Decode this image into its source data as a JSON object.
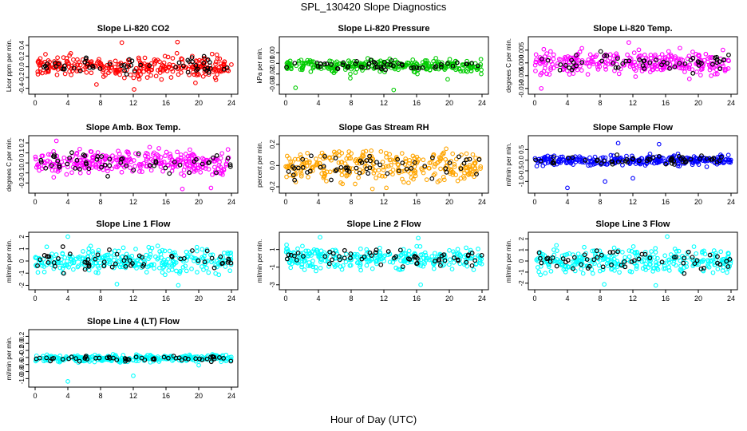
{
  "title": "SPL_130420  Slope Diagnostics",
  "xlabel": "Hour of Day (UTC)",
  "colors": {
    "trend": "#000000",
    "axis": "#000000"
  },
  "chart_data": [
    {
      "type": "scatter",
      "title": "Slope Li-820 CO2",
      "ylabel": "Licor ppm per min.",
      "color": "#ff0000",
      "xlim": [
        0,
        24
      ],
      "ylim": [
        -0.45,
        0.5
      ],
      "xticks": [
        "0",
        "4",
        "8",
        "12",
        "16",
        "20",
        "24"
      ],
      "yticks": [
        {
          "v": -0.4,
          "label": "-0.4"
        },
        {
          "v": -0.2,
          "label": "-0.2"
        },
        {
          "v": 0,
          "label": "0.0"
        },
        {
          "v": 0.2,
          "label": "0.2"
        },
        {
          "v": 0.4,
          "label": "0.4"
        }
      ],
      "spread": 0.14,
      "outliers": [
        [
          7.5,
          -0.33
        ],
        [
          10.6,
          0.45
        ],
        [
          12.1,
          -0.42
        ],
        [
          17.4,
          0.46
        ],
        [
          19.6,
          -0.3
        ]
      ]
    },
    {
      "type": "scatter",
      "title": "Slope Li-820 Pressure",
      "ylabel": "kPa per min.",
      "color": "#00cc00",
      "xlim": [
        0,
        24
      ],
      "ylim": [
        -0.036,
        0.012
      ],
      "xticks": [
        "0",
        "4",
        "8",
        "12",
        "16",
        "20",
        "24"
      ],
      "yticks": [
        {
          "v": -0.03,
          "label": "-0.03"
        },
        {
          "v": -0.02,
          "label": "-0.02"
        },
        {
          "v": -0.01,
          "label": "-0.01"
        },
        {
          "v": 0,
          "label": "0.00"
        }
      ],
      "spread": 0.004,
      "outliers": [
        [
          1.2,
          -0.033
        ],
        [
          7.9,
          -0.02
        ],
        [
          7.9,
          -0.024
        ],
        [
          13.2,
          -0.035
        ],
        [
          16.1,
          -0.02
        ],
        [
          19.8,
          -0.025
        ],
        [
          23.9,
          -0.02
        ]
      ]
    },
    {
      "type": "scatter",
      "title": "Slope Li-820 Temp.",
      "ylabel": "degrees C per min.",
      "color": "#ff00ff",
      "xlim": [
        0,
        24
      ],
      "ylim": [
        -0.011,
        0.009
      ],
      "xticks": [
        "0",
        "4",
        "8",
        "12",
        "16",
        "20",
        "24"
      ],
      "yticks": [
        {
          "v": -0.01,
          "label": "-0.010"
        },
        {
          "v": -0.005,
          "label": "-0.005"
        },
        {
          "v": 0,
          "label": "0.000"
        },
        {
          "v": 0.005,
          "label": "0.005"
        }
      ],
      "spread": 0.0035,
      "outliers": [
        [
          0.8,
          -0.01
        ],
        [
          11.5,
          0.008
        ]
      ]
    },
    {
      "type": "scatter",
      "title": "Slope Amb. Box Temp.",
      "ylabel": "degrees C per min.",
      "color": "#ff00ff",
      "xlim": [
        0,
        24
      ],
      "ylim": [
        -0.27,
        0.24
      ],
      "xticks": [
        "0",
        "4",
        "8",
        "12",
        "16",
        "20",
        "24"
      ],
      "yticks": [
        {
          "v": -0.2,
          "label": "-0.2"
        },
        {
          "v": -0.1,
          "label": "-0.1"
        },
        {
          "v": 0,
          "label": "0.0"
        },
        {
          "v": 0.1,
          "label": "0.1"
        },
        {
          "v": 0.2,
          "label": "0.2"
        }
      ],
      "spread": 0.09,
      "outliers": [
        [
          2.6,
          0.22
        ],
        [
          18.0,
          -0.26
        ],
        [
          21.5,
          -0.25
        ]
      ]
    },
    {
      "type": "scatter",
      "title": "Slope Gas Stream RH",
      "ylabel": "percent per min.",
      "color": "#ffa500",
      "xlim": [
        0,
        24
      ],
      "ylim": [
        -0.23,
        0.25
      ],
      "xticks": [
        "0",
        "4",
        "8",
        "12",
        "16",
        "20",
        "24"
      ],
      "yticks": [
        {
          "v": -0.2,
          "label": "-0.2"
        },
        {
          "v": 0,
          "label": "0.0"
        },
        {
          "v": 0.2,
          "label": "0.2"
        }
      ],
      "spread": 0.11,
      "outliers": [
        [
          10.6,
          -0.22
        ],
        [
          12.3,
          -0.21
        ]
      ]
    },
    {
      "type": "scatter",
      "title": "Slope Sample Flow",
      "ylabel": "ml/min per min.",
      "color": "#0000ff",
      "xlim": [
        0,
        24
      ],
      "ylim": [
        -1.4,
        1.0
      ],
      "xticks": [
        "0",
        "4",
        "8",
        "12",
        "16",
        "20",
        "24"
      ],
      "yticks": [
        {
          "v": -1,
          "label": "-1.0"
        },
        {
          "v": -0.5,
          "label": "-0.5"
        },
        {
          "v": 0,
          "label": "0.0"
        },
        {
          "v": 0.5,
          "label": "0.5"
        }
      ],
      "spread": 0.18,
      "outliers": [
        [
          4.0,
          -1.3
        ],
        [
          8.6,
          -1.0
        ],
        [
          12.0,
          -0.85
        ],
        [
          15.2,
          0.75
        ],
        [
          10.2,
          0.8
        ]
      ]
    },
    {
      "type": "scatter",
      "title": "Slope Line 1 Flow",
      "ylabel": "ml/min per min.",
      "color": "#00ffff",
      "xlim": [
        0,
        24
      ],
      "ylim": [
        -2.1,
        2.1
      ],
      "xticks": [
        "0",
        "4",
        "8",
        "12",
        "16",
        "20",
        "24"
      ],
      "yticks": [
        {
          "v": -2,
          "label": "-2"
        },
        {
          "v": -1,
          "label": "-1"
        },
        {
          "v": 0,
          "label": "0"
        },
        {
          "v": 1,
          "label": "1"
        },
        {
          "v": 2,
          "label": "2"
        }
      ],
      "spread": 0.75,
      "outliers": [
        [
          4.0,
          2.0
        ],
        [
          10.0,
          -1.9
        ],
        [
          17.5,
          -2.0
        ]
      ]
    },
    {
      "type": "scatter",
      "title": "Slope Line 2 Flow",
      "ylabel": "ml/min per min.",
      "color": "#00ffff",
      "xlim": [
        0,
        24
      ],
      "ylim": [
        -3.2,
        2.6
      ],
      "xticks": [
        "0",
        "4",
        "8",
        "12",
        "16",
        "20",
        "24"
      ],
      "yticks": [
        {
          "v": -3,
          "label": "-3"
        },
        {
          "v": -1,
          "label": "-1"
        },
        {
          "v": 1,
          "label": "1"
        }
      ],
      "spread": 1.0,
      "outliers": [
        [
          16.5,
          -3.0
        ],
        [
          4.2,
          2.4
        ],
        [
          16.2,
          2.3
        ]
      ]
    },
    {
      "type": "scatter",
      "title": "Slope Line 3 Flow",
      "ylabel": "ml/min per min.",
      "color": "#00ffff",
      "xlim": [
        0,
        24
      ],
      "ylim": [
        -2.3,
        2.3
      ],
      "xticks": [
        "0",
        "4",
        "8",
        "12",
        "16",
        "20",
        "24"
      ],
      "yticks": [
        {
          "v": -2,
          "label": "-2"
        },
        {
          "v": -1,
          "label": "-1"
        },
        {
          "v": 0,
          "label": "0"
        },
        {
          "v": 1,
          "label": "1"
        },
        {
          "v": 2,
          "label": "2"
        }
      ],
      "spread": 0.8,
      "outliers": [
        [
          8.5,
          -2.1
        ],
        [
          16.2,
          2.2
        ],
        [
          14.8,
          -2.2
        ]
      ]
    },
    {
      "type": "scatter",
      "title": "Slope Line 4 (LT) Flow",
      "ylabel": "ml/min per min.",
      "color": "#00ffff",
      "xlim": [
        0,
        24
      ],
      "ylim": [
        -1.15,
        0.3
      ],
      "xticks": [
        "0",
        "4",
        "8",
        "12",
        "16",
        "20",
        "24"
      ],
      "yticks": [
        {
          "v": -1,
          "label": "-1.0"
        },
        {
          "v": -0.8,
          "label": "-0.8"
        },
        {
          "v": -0.6,
          "label": "-0.6"
        },
        {
          "v": -0.4,
          "label": "-0.4"
        },
        {
          "v": -0.2,
          "label": "-0.2"
        },
        {
          "v": 0,
          "label": "0.0"
        },
        {
          "v": 0.2,
          "label": "0.2"
        }
      ],
      "spread": 0.07,
      "outliers": [
        [
          4.0,
          -1.08
        ],
        [
          12.0,
          -0.92
        ],
        [
          20.0,
          -0.62
        ]
      ]
    }
  ]
}
